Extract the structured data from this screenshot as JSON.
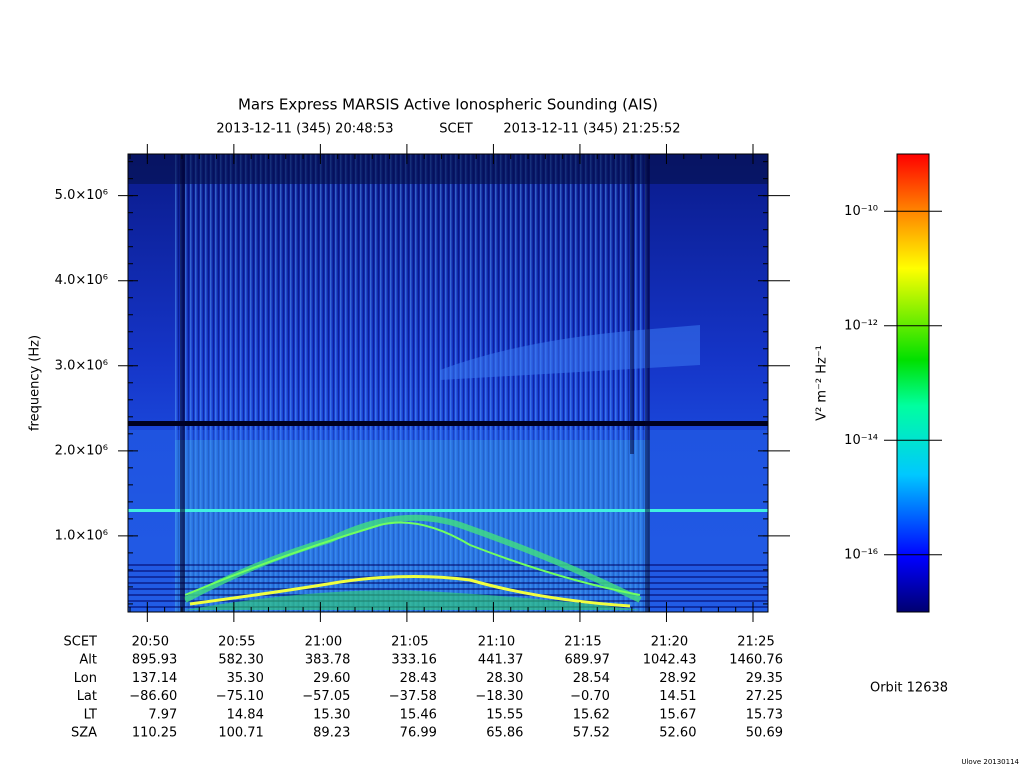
{
  "chart_data": {
    "type": "spectrogram",
    "title": "Mars Express MARSIS Active Ionospheric Sounding (AIS)",
    "start_time": "2013-12-11 (345) 20:48:53",
    "time_system": "SCET",
    "end_time": "2013-12-11 (345) 21:25:52",
    "ylabel": "frequency (Hz)",
    "xlabel": "SCET",
    "xlim": [
      1248.883,
      1285.867
    ],
    "xticks": [
      {
        "value": 1250,
        "label": "20:50"
      },
      {
        "value": 1255,
        "label": "20:55"
      },
      {
        "value": 1260,
        "label": "21:00"
      },
      {
        "value": 1265,
        "label": "21:05"
      },
      {
        "value": 1270,
        "label": "21:10"
      },
      {
        "value": 1275,
        "label": "21:15"
      },
      {
        "value": 1280,
        "label": "21:20"
      },
      {
        "value": 1285,
        "label": "21:25"
      }
    ],
    "ylim": [
      105000,
      5490000
    ],
    "yticks": [
      {
        "value": 1000000,
        "label": "1.0×10⁶"
      },
      {
        "value": 2000000,
        "label": "2.0×10⁶"
      },
      {
        "value": 3000000,
        "label": "3.0×10⁶"
      },
      {
        "value": 4000000,
        "label": "4.0×10⁶"
      },
      {
        "value": 5000000,
        "label": "5.0×10⁶"
      }
    ],
    "colorbar": {
      "label": "V² m⁻² Hz⁻¹",
      "log": true,
      "zlim": [
        1e-17,
        1e-09
      ],
      "ticks": [
        {
          "value": 1e-16,
          "label": "10⁻¹⁶"
        },
        {
          "value": 1e-14,
          "label": "10⁻¹⁴"
        },
        {
          "value": 1e-12,
          "label": "10⁻¹²"
        },
        {
          "value": 1e-10,
          "label": "10⁻¹⁰"
        }
      ]
    },
    "ephemeris": [
      {
        "label": "Alt",
        "values": [
          "895.93",
          "582.30",
          "383.78",
          "333.16",
          "441.37",
          "689.97",
          "1042.43",
          "1460.76"
        ]
      },
      {
        "label": "Lon",
        "values": [
          "137.14",
          "35.30",
          "29.60",
          "28.43",
          "28.30",
          "28.54",
          "28.92",
          "29.35"
        ]
      },
      {
        "label": "Lat",
        "values": [
          "−86.60",
          "−75.10",
          "−57.05",
          "−37.58",
          "−18.30",
          "−0.70",
          "14.51",
          "27.25"
        ]
      },
      {
        "label": "LT",
        "values": [
          "7.97",
          "14.84",
          "15.30",
          "15.46",
          "15.55",
          "15.62",
          "15.67",
          "15.73"
        ]
      },
      {
        "label": "SZA",
        "values": [
          "110.25",
          "100.71",
          "89.23",
          "76.99",
          "65.86",
          "57.52",
          "52.60",
          "50.69"
        ]
      }
    ],
    "orbit": "Orbit 12638",
    "footer": "Ulove 20130114"
  }
}
